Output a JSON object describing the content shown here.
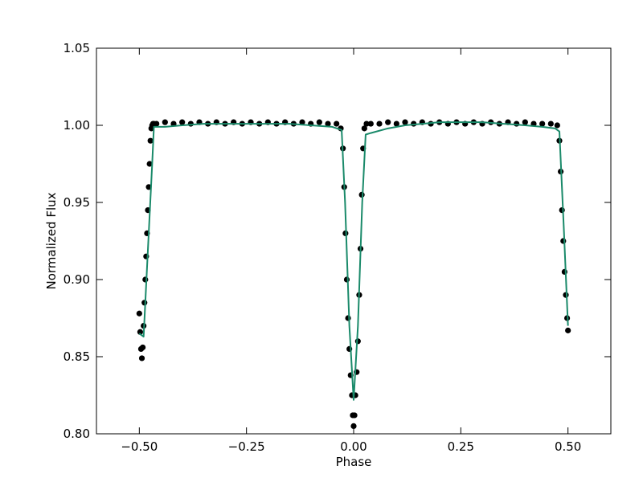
{
  "chart_data": {
    "type": "scatter",
    "title": "",
    "xlabel": "Phase",
    "ylabel": "Normalized Flux",
    "xlim": [
      -0.6,
      0.6
    ],
    "ylim": [
      0.8,
      1.05
    ],
    "x_ticks": [
      -0.5,
      -0.25,
      0.0,
      0.25,
      0.5
    ],
    "x_tick_labels": [
      "−0.50",
      "−0.25",
      "0.00",
      "0.25",
      "0.50"
    ],
    "y_ticks": [
      0.8,
      0.85,
      0.9,
      0.95,
      1.0,
      1.05
    ],
    "y_tick_labels": [
      "0.80",
      "0.85",
      "0.90",
      "0.95",
      "1.00",
      "1.05"
    ],
    "grid": false,
    "legend": "none",
    "series": [
      {
        "kind": "observed",
        "color": "#000000",
        "marker": "dot",
        "x": [
          -0.5,
          -0.498,
          -0.496,
          -0.494,
          -0.492,
          -0.49,
          -0.488,
          -0.486,
          -0.484,
          -0.482,
          -0.48,
          -0.478,
          -0.476,
          -0.474,
          -0.472,
          -0.47,
          -0.468,
          -0.466,
          -0.46,
          -0.44,
          -0.42,
          -0.4,
          -0.38,
          -0.36,
          -0.34,
          -0.32,
          -0.3,
          -0.28,
          -0.26,
          -0.24,
          -0.22,
          -0.2,
          -0.18,
          -0.16,
          -0.14,
          -0.12,
          -0.1,
          -0.08,
          -0.06,
          -0.04,
          -0.03,
          -0.025,
          -0.022,
          -0.019,
          -0.016,
          -0.013,
          -0.01,
          -0.007,
          -0.004,
          -0.002,
          0.0,
          0.002,
          0.004,
          0.007,
          0.01,
          0.013,
          0.016,
          0.019,
          0.022,
          0.025,
          0.03,
          0.04,
          0.06,
          0.08,
          0.1,
          0.12,
          0.14,
          0.16,
          0.18,
          0.2,
          0.22,
          0.24,
          0.26,
          0.28,
          0.3,
          0.32,
          0.34,
          0.36,
          0.38,
          0.4,
          0.42,
          0.44,
          0.46,
          0.475,
          0.48,
          0.483,
          0.486,
          0.489,
          0.492,
          0.495,
          0.498,
          0.5
        ],
        "y": [
          0.878,
          0.866,
          0.855,
          0.849,
          0.856,
          0.87,
          0.885,
          0.9,
          0.915,
          0.93,
          0.945,
          0.96,
          0.975,
          0.99,
          0.998,
          1.0,
          1.001,
          1.001,
          1.001,
          1.002,
          1.001,
          1.002,
          1.001,
          1.002,
          1.001,
          1.002,
          1.001,
          1.002,
          1.001,
          1.002,
          1.001,
          1.002,
          1.001,
          1.002,
          1.001,
          1.002,
          1.001,
          1.002,
          1.001,
          1.001,
          0.998,
          0.985,
          0.96,
          0.93,
          0.9,
          0.875,
          0.855,
          0.838,
          0.825,
          0.812,
          0.805,
          0.812,
          0.825,
          0.84,
          0.86,
          0.89,
          0.92,
          0.955,
          0.985,
          0.998,
          1.001,
          1.001,
          1.001,
          1.002,
          1.001,
          1.002,
          1.001,
          1.002,
          1.001,
          1.002,
          1.001,
          1.002,
          1.001,
          1.002,
          1.001,
          1.002,
          1.001,
          1.002,
          1.001,
          1.002,
          1.001,
          1.001,
          1.001,
          1.0,
          0.99,
          0.97,
          0.945,
          0.925,
          0.905,
          0.89,
          0.875,
          0.867
        ]
      },
      {
        "kind": "model",
        "color": "#1a8a6a",
        "marker": "line",
        "x": [
          -0.5,
          -0.49,
          -0.47,
          -0.466,
          -0.44,
          -0.4,
          -0.35,
          -0.3,
          -0.25,
          -0.2,
          -0.15,
          -0.1,
          -0.05,
          -0.028,
          -0.02,
          -0.01,
          0.0,
          0.01,
          0.02,
          0.028,
          0.04,
          0.08,
          0.12,
          0.16,
          0.2,
          0.25,
          0.3,
          0.35,
          0.4,
          0.44,
          0.47,
          0.48,
          0.49,
          0.5
        ],
        "y": [
          0.865,
          0.863,
          0.975,
          0.999,
          0.999,
          1.0,
          1.001,
          1.001,
          1.001,
          1.001,
          1.001,
          1.0,
          0.999,
          0.997,
          0.95,
          0.87,
          0.822,
          0.87,
          0.95,
          0.994,
          0.995,
          0.998,
          1.0,
          1.001,
          1.002,
          1.002,
          1.002,
          1.001,
          1.0,
          0.999,
          0.998,
          0.996,
          0.935,
          0.87
        ]
      }
    ]
  }
}
